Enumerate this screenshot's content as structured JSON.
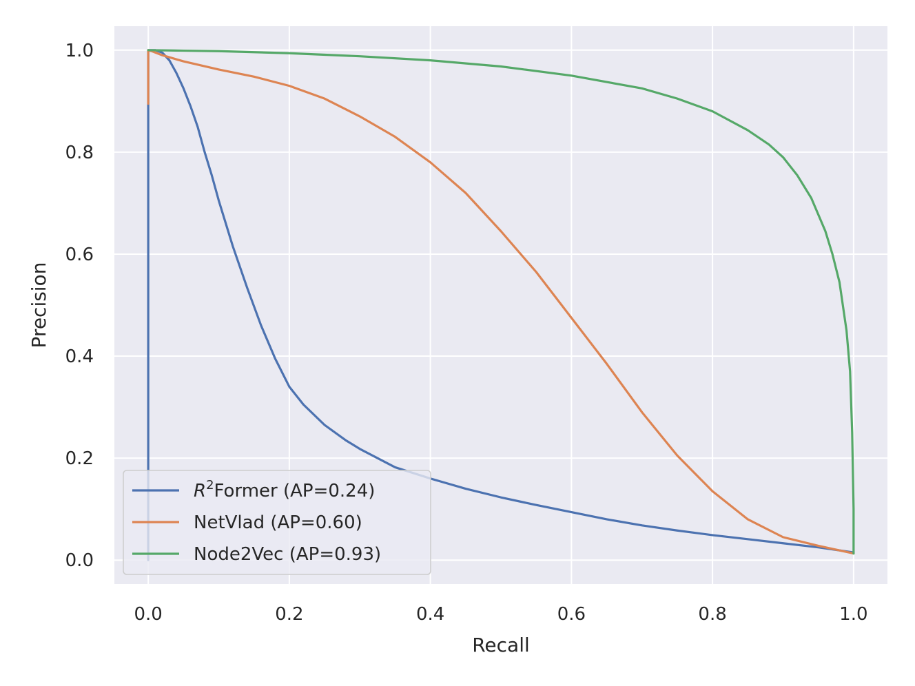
{
  "chart_data": {
    "type": "line",
    "xlabel": "Recall",
    "ylabel": "Precision",
    "xlim": [
      -0.048,
      1.048
    ],
    "ylim": [
      -0.047,
      1.047
    ],
    "xticks": [
      0.0,
      0.2,
      0.4,
      0.6,
      0.8,
      1.0
    ],
    "yticks": [
      0.0,
      0.2,
      0.4,
      0.6,
      0.8,
      1.0
    ],
    "tick_labels_x": [
      "0.0",
      "0.2",
      "0.4",
      "0.6",
      "0.8",
      "1.0"
    ],
    "tick_labels_y": [
      "0.0",
      "0.2",
      "0.4",
      "0.6",
      "0.8",
      "1.0"
    ],
    "grid": true,
    "legend_position": "lower-left",
    "legend_entries": [
      {
        "prefix": "R",
        "sup": "2",
        "text": "Former (AP=0.24)"
      },
      {
        "prefix": "",
        "sup": "",
        "text": "NetVlad (AP=0.60)"
      },
      {
        "prefix": "",
        "sup": "",
        "text": "Node2Vec (AP=0.93)"
      }
    ],
    "series": [
      {
        "color": "#4c72b0",
        "x": [
          0.0,
          0.0,
          0.0,
          0.01,
          0.02,
          0.03,
          0.04,
          0.05,
          0.06,
          0.07,
          0.08,
          0.09,
          0.1,
          0.12,
          0.14,
          0.16,
          0.18,
          0.2,
          0.22,
          0.25,
          0.28,
          0.3,
          0.35,
          0.4,
          0.45,
          0.5,
          0.55,
          0.6,
          0.65,
          0.7,
          0.75,
          0.8,
          0.85,
          0.9,
          0.95,
          1.0
        ],
        "y": [
          0.0,
          0.9,
          1.0,
          1.0,
          0.995,
          0.98,
          0.955,
          0.925,
          0.89,
          0.85,
          0.8,
          0.755,
          0.705,
          0.615,
          0.535,
          0.46,
          0.395,
          0.34,
          0.305,
          0.265,
          0.235,
          0.218,
          0.182,
          0.16,
          0.14,
          0.123,
          0.108,
          0.094,
          0.08,
          0.068,
          0.058,
          0.049,
          0.041,
          0.033,
          0.025,
          0.015
        ]
      },
      {
        "color": "#dd8452",
        "x": [
          0.0,
          0.0,
          0.005,
          0.02,
          0.05,
          0.1,
          0.15,
          0.2,
          0.25,
          0.3,
          0.35,
          0.4,
          0.45,
          0.5,
          0.55,
          0.6,
          0.65,
          0.7,
          0.75,
          0.8,
          0.85,
          0.9,
          0.95,
          1.0
        ],
        "y": [
          0.895,
          1.0,
          0.998,
          0.99,
          0.978,
          0.962,
          0.948,
          0.93,
          0.905,
          0.87,
          0.83,
          0.78,
          0.72,
          0.645,
          0.565,
          0.475,
          0.385,
          0.29,
          0.205,
          0.135,
          0.08,
          0.045,
          0.028,
          0.013
        ]
      },
      {
        "color": "#55a868",
        "x": [
          0.0,
          0.05,
          0.1,
          0.2,
          0.3,
          0.4,
          0.5,
          0.6,
          0.7,
          0.75,
          0.8,
          0.85,
          0.88,
          0.9,
          0.92,
          0.94,
          0.96,
          0.97,
          0.98,
          0.99,
          0.995,
          0.998,
          1.0,
          1.0
        ],
        "y": [
          1.0,
          0.999,
          0.998,
          0.994,
          0.988,
          0.98,
          0.968,
          0.95,
          0.925,
          0.905,
          0.88,
          0.843,
          0.815,
          0.79,
          0.755,
          0.71,
          0.645,
          0.6,
          0.545,
          0.45,
          0.37,
          0.25,
          0.1,
          0.013
        ]
      }
    ]
  }
}
